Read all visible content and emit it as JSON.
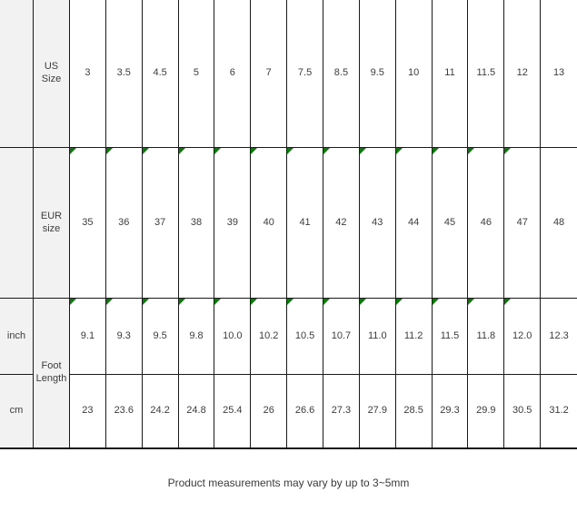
{
  "chart_data": {
    "type": "table",
    "rows": [
      {
        "label": "US Size",
        "values": [
          "3",
          "3.5",
          "4.5",
          "5",
          "6",
          "7",
          "7.5",
          "8.5",
          "9.5",
          "10",
          "11",
          "11.5",
          "12",
          "13"
        ]
      },
      {
        "label": "EUR size",
        "values": [
          "35",
          "36",
          "37",
          "38",
          "39",
          "40",
          "41",
          "42",
          "43",
          "44",
          "45",
          "46",
          "47",
          "48"
        ]
      },
      {
        "label": "inch",
        "group": "Foot Length",
        "values": [
          "9.1",
          "9.3",
          "9.5",
          "9.8",
          "10.0",
          "10.2",
          "10.5",
          "10.7",
          "11.0",
          "11.2",
          "11.5",
          "11.8",
          "12.0",
          "12.3"
        ]
      },
      {
        "label": "cm",
        "group": "Foot Length",
        "values": [
          "23",
          "23.6",
          "24.2",
          "24.8",
          "25.4",
          "26",
          "26.6",
          "27.3",
          "27.9",
          "28.5",
          "29.3",
          "29.9",
          "30.5",
          "31.2"
        ]
      }
    ],
    "merged_label": "Foot Length",
    "note": "Product measurements may vary by up to 3~5mm",
    "layout": {
      "marker_cells": "green top-left corner markers on EUR size and inch rows, columns 1-13",
      "grid": "on"
    }
  },
  "colors": {
    "header_bg": "#f2f2f2",
    "border": "#1a1a1a",
    "text": "#3c3c3c",
    "marker_green": "#0a7b0a"
  }
}
